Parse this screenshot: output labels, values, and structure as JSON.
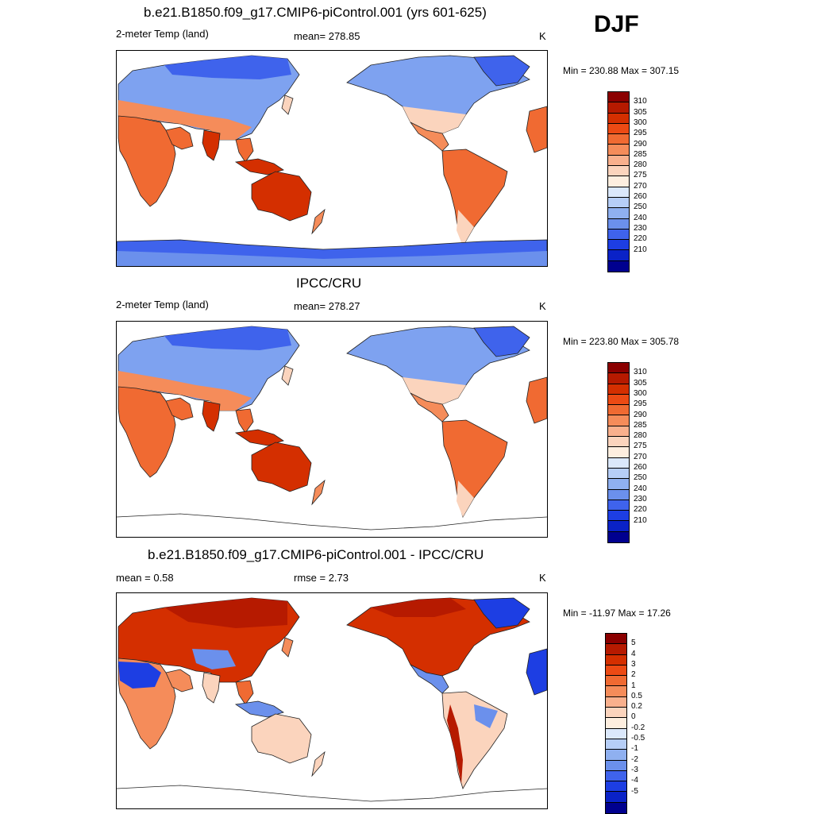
{
  "season": "DJF",
  "panels": [
    {
      "title": "b.e21.B1850.f09_g17.CMIP6-piControl.001 (yrs 601-625)",
      "left_label": "2-meter Temp (land)",
      "center_label": "mean= 278.85",
      "units": "K",
      "minmax": "Min = 230.88 Max = 307.15",
      "colorbar": "temp",
      "antarctica_filled": true
    },
    {
      "title": "IPCC/CRU",
      "left_label": "2-meter Temp (land)",
      "center_label": "mean= 278.27",
      "units": "K",
      "minmax": "Min = 223.80 Max = 305.78",
      "colorbar": "temp",
      "antarctica_filled": false
    },
    {
      "title": "b.e21.B1850.f09_g17.CMIP6-piControl.001 - IPCC/CRU",
      "left_label": "mean =   0.58",
      "center_label": "rmse =   2.73",
      "units": "K",
      "minmax": "Min = -11.97 Max =  17.26",
      "colorbar": "diff",
      "antarctica_filled": false
    }
  ],
  "colorbars": {
    "temp": {
      "labels": [
        "310",
        "305",
        "300",
        "295",
        "290",
        "285",
        "280",
        "275",
        "270",
        "260",
        "250",
        "240",
        "230",
        "220",
        "210"
      ],
      "colors": [
        "#8b0000",
        "#b61a00",
        "#d42f00",
        "#ec4a14",
        "#f06a32",
        "#f58c5a",
        "#f9b08d",
        "#fbd4bd",
        "#fdeedf",
        "#dbe8fb",
        "#b6cef7",
        "#8fb0f0",
        "#6b90ec",
        "#3f63ec",
        "#1d3ee3",
        "#0a22c7",
        "#00008f"
      ]
    },
    "diff": {
      "labels": [
        "5",
        "4",
        "3",
        "2",
        "1",
        "0.5",
        "0.2",
        "0",
        "-0.2",
        "-0.5",
        "-1",
        "-2",
        "-3",
        "-4",
        "-5"
      ],
      "colors": [
        "#8b0000",
        "#b61a00",
        "#d42f00",
        "#ec4a14",
        "#f06a32",
        "#f58c5a",
        "#f9b08d",
        "#fbd4bd",
        "#fdeedf",
        "#dbe8fb",
        "#b6cef7",
        "#8fb0f0",
        "#6b90ec",
        "#3f63ec",
        "#1d3ee3",
        "#0a22c7",
        "#00008f"
      ]
    }
  }
}
